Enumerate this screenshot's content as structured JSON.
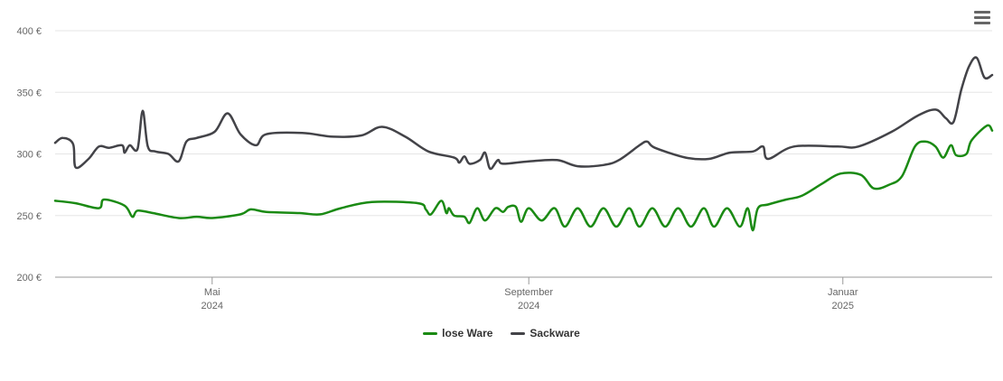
{
  "menu": {
    "icon": "hamburger-menu-icon"
  },
  "chart_data": {
    "type": "line",
    "title": "",
    "xlabel": "",
    "ylabel": "",
    "ylim": [
      200,
      400
    ],
    "y_ticks": [
      {
        "value": 200,
        "label": "200 €"
      },
      {
        "value": 250,
        "label": "250 €"
      },
      {
        "value": 300,
        "label": "300 €"
      },
      {
        "value": 350,
        "label": "350 €"
      },
      {
        "value": 400,
        "label": "400 €"
      }
    ],
    "x_range": [
      "2024-03-01",
      "2025-02-28"
    ],
    "x_ticks": [
      {
        "date": "2024-05-01",
        "month": "Mai",
        "year": "2024"
      },
      {
        "date": "2024-09-01",
        "month": "September",
        "year": "2024"
      },
      {
        "date": "2025-01-01",
        "month": "Januar",
        "year": "2025"
      }
    ],
    "grid": true,
    "legend_position": "bottom",
    "series": [
      {
        "name": "lose Ware",
        "color": "#1a8a13",
        "points": [
          [
            "2024-03-01",
            262
          ],
          [
            "2024-03-09",
            260
          ],
          [
            "2024-03-18",
            256
          ],
          [
            "2024-03-20",
            263
          ],
          [
            "2024-03-28",
            258
          ],
          [
            "2024-03-31",
            249
          ],
          [
            "2024-04-02",
            254
          ],
          [
            "2024-04-08",
            252
          ],
          [
            "2024-04-18",
            248
          ],
          [
            "2024-04-25",
            249
          ],
          [
            "2024-05-01",
            248
          ],
          [
            "2024-05-12",
            251
          ],
          [
            "2024-05-16",
            255
          ],
          [
            "2024-05-22",
            253
          ],
          [
            "2024-06-04",
            252
          ],
          [
            "2024-06-12",
            251
          ],
          [
            "2024-06-20",
            256
          ],
          [
            "2024-07-02",
            261
          ],
          [
            "2024-07-20",
            260
          ],
          [
            "2024-07-23",
            255
          ],
          [
            "2024-07-25",
            251
          ],
          [
            "2024-07-29",
            262
          ],
          [
            "2024-07-31",
            252
          ],
          [
            "2024-08-01",
            256
          ],
          [
            "2024-08-03",
            250
          ],
          [
            "2024-08-07",
            249
          ],
          [
            "2024-08-09",
            244
          ],
          [
            "2024-08-12",
            256
          ],
          [
            "2024-08-15",
            246
          ],
          [
            "2024-08-19",
            256
          ],
          [
            "2024-08-22",
            253
          ],
          [
            "2024-08-24",
            257
          ],
          [
            "2024-08-27",
            257
          ],
          [
            "2024-08-29",
            245
          ],
          [
            "2024-09-01",
            256
          ],
          [
            "2024-09-06",
            246
          ],
          [
            "2024-09-11",
            256
          ],
          [
            "2024-09-15",
            241
          ],
          [
            "2024-09-20",
            256
          ],
          [
            "2024-09-25",
            241
          ],
          [
            "2024-09-30",
            256
          ],
          [
            "2024-10-05",
            241
          ],
          [
            "2024-10-10",
            256
          ],
          [
            "2024-10-14",
            241
          ],
          [
            "2024-10-19",
            256
          ],
          [
            "2024-10-24",
            241
          ],
          [
            "2024-10-29",
            256
          ],
          [
            "2024-11-03",
            241
          ],
          [
            "2024-11-08",
            256
          ],
          [
            "2024-11-12",
            241
          ],
          [
            "2024-11-17",
            256
          ],
          [
            "2024-11-22",
            241
          ],
          [
            "2024-11-25",
            256
          ],
          [
            "2024-11-27",
            238
          ],
          [
            "2024-11-29",
            256
          ],
          [
            "2024-12-03",
            259
          ],
          [
            "2024-12-10",
            263
          ],
          [
            "2024-12-16",
            266
          ],
          [
            "2024-12-24",
            276
          ],
          [
            "2024-12-31",
            284
          ],
          [
            "2025-01-08",
            283
          ],
          [
            "2025-01-13",
            272
          ],
          [
            "2025-01-19",
            275
          ],
          [
            "2025-01-24",
            282
          ],
          [
            "2025-01-29",
            306
          ],
          [
            "2025-02-02",
            310
          ],
          [
            "2025-02-06",
            306
          ],
          [
            "2025-02-09",
            297
          ],
          [
            "2025-02-12",
            307
          ],
          [
            "2025-02-14",
            299
          ],
          [
            "2025-02-18",
            300
          ],
          [
            "2025-02-20",
            311
          ],
          [
            "2025-02-26",
            323
          ],
          [
            "2025-02-28",
            319
          ]
        ]
      },
      {
        "name": "Sackware",
        "color": "#434348",
        "points": [
          [
            "2024-03-01",
            309
          ],
          [
            "2024-03-04",
            313
          ],
          [
            "2024-03-08",
            308
          ],
          [
            "2024-03-09",
            289
          ],
          [
            "2024-03-14",
            296
          ],
          [
            "2024-03-18",
            306
          ],
          [
            "2024-03-22",
            305
          ],
          [
            "2024-03-27",
            307
          ],
          [
            "2024-03-28",
            301
          ],
          [
            "2024-03-30",
            307
          ],
          [
            "2024-04-02",
            304
          ],
          [
            "2024-04-04",
            335
          ],
          [
            "2024-04-06",
            306
          ],
          [
            "2024-04-09",
            302
          ],
          [
            "2024-04-14",
            300
          ],
          [
            "2024-04-18",
            294
          ],
          [
            "2024-04-21",
            310
          ],
          [
            "2024-04-25",
            313
          ],
          [
            "2024-05-02",
            318
          ],
          [
            "2024-05-07",
            333
          ],
          [
            "2024-05-12",
            316
          ],
          [
            "2024-05-18",
            307
          ],
          [
            "2024-05-22",
            316
          ],
          [
            "2024-06-05",
            317
          ],
          [
            "2024-06-17",
            314
          ],
          [
            "2024-06-28",
            315
          ],
          [
            "2024-07-06",
            322
          ],
          [
            "2024-07-15",
            314
          ],
          [
            "2024-07-24",
            302
          ],
          [
            "2024-08-03",
            297
          ],
          [
            "2024-08-05",
            293
          ],
          [
            "2024-08-07",
            298
          ],
          [
            "2024-08-09",
            292
          ],
          [
            "2024-08-13",
            295
          ],
          [
            "2024-08-15",
            301
          ],
          [
            "2024-08-17",
            288
          ],
          [
            "2024-08-20",
            295
          ],
          [
            "2024-08-22",
            292
          ],
          [
            "2024-09-01",
            294
          ],
          [
            "2024-09-12",
            295
          ],
          [
            "2024-09-20",
            290
          ],
          [
            "2024-09-30",
            291
          ],
          [
            "2024-10-06",
            295
          ],
          [
            "2024-10-14",
            307
          ],
          [
            "2024-10-17",
            310
          ],
          [
            "2024-10-20",
            305
          ],
          [
            "2024-11-01",
            297
          ],
          [
            "2024-11-10",
            296
          ],
          [
            "2024-11-18",
            301
          ],
          [
            "2024-11-27",
            302
          ],
          [
            "2024-12-01",
            306
          ],
          [
            "2024-12-03",
            296
          ],
          [
            "2024-12-13",
            306
          ],
          [
            "2024-12-30",
            306
          ],
          [
            "2025-01-07",
            306
          ],
          [
            "2025-01-20",
            318
          ],
          [
            "2025-01-30",
            331
          ],
          [
            "2025-02-06",
            336
          ],
          [
            "2025-02-10",
            329
          ],
          [
            "2025-02-13",
            326
          ],
          [
            "2025-02-16",
            352
          ],
          [
            "2025-02-19",
            371
          ],
          [
            "2025-02-22",
            378
          ],
          [
            "2025-02-25",
            362
          ],
          [
            "2025-02-28",
            364
          ]
        ]
      }
    ]
  }
}
